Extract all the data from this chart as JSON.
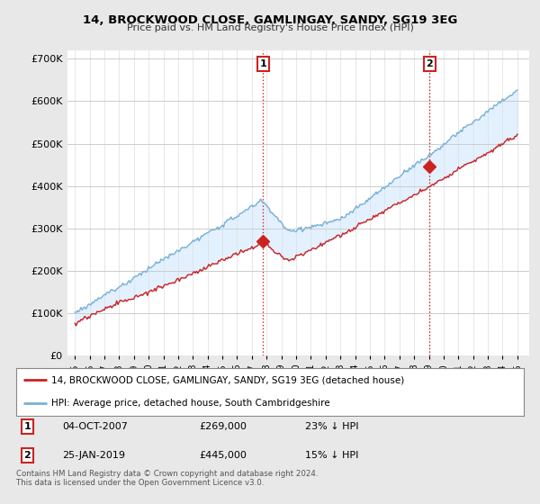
{
  "title": "14, BROCKWOOD CLOSE, GAMLINGAY, SANDY, SG19 3EG",
  "subtitle": "Price paid vs. HM Land Registry's House Price Index (HPI)",
  "ylim": [
    0,
    720000
  ],
  "yticks": [
    0,
    100000,
    200000,
    300000,
    400000,
    500000,
    600000,
    700000
  ],
  "ytick_labels": [
    "£0",
    "£100K",
    "£200K",
    "£300K",
    "£400K",
    "£500K",
    "£600K",
    "£700K"
  ],
  "background_color": "#e8e8e8",
  "plot_bg_color": "#ffffff",
  "legend_entries": [
    "14, BROCKWOOD CLOSE, GAMLINGAY, SANDY, SG19 3EG (detached house)",
    "HPI: Average price, detached house, South Cambridgeshire"
  ],
  "marker1_x": 2007.75,
  "marker1_price": 269000,
  "marker2_x": 2019.05,
  "marker2_price": 445000,
  "line_color_red": "#cc2222",
  "line_color_blue": "#7ab0d4",
  "fill_color": "#ddeeff",
  "footer": "Contains HM Land Registry data © Crown copyright and database right 2024.\nThis data is licensed under the Open Government Licence v3.0."
}
